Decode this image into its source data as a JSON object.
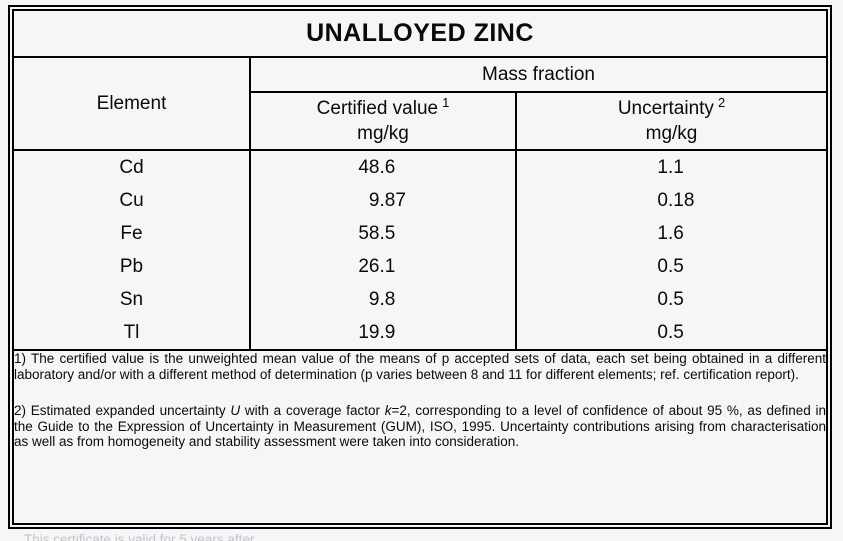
{
  "title": "UNALLOYED ZINC",
  "table": {
    "group_header": "Mass fraction",
    "element_header": "Element",
    "certified_header": {
      "label": "Certified value",
      "sup": "1",
      "unit": "mg/kg"
    },
    "uncertainty_header": {
      "label": "Uncertainty",
      "sup": "2",
      "unit": "mg/kg"
    },
    "rows": [
      {
        "element": "Cd",
        "certified": "48.6",
        "uncertainty": "1.1"
      },
      {
        "element": "Cu",
        "certified": "9.87",
        "uncertainty": "0.18"
      },
      {
        "element": "Fe",
        "certified": "58.5",
        "uncertainty": "1.6"
      },
      {
        "element": "Pb",
        "certified": "26.1",
        "uncertainty": "0.5"
      },
      {
        "element": "Sn",
        "certified": "9.8",
        "uncertainty": "0.5"
      },
      {
        "element": "Tl",
        "certified": "19.9",
        "uncertainty": "0.5"
      }
    ]
  },
  "footnotes": {
    "note1": "1) The certified value is the unweighted mean value of the means of p accepted sets of data, each set being obtained in a different laboratory and/or with a different method of determination (p varies between 8 and 11 for different elements; ref. certification report).",
    "note2_part1": "2) Estimated expanded uncertainty ",
    "note2_italic1": "U",
    "note2_part2": " with a coverage factor ",
    "note2_italic2": "k",
    "note2_part3": "=2, corresponding to a level of confidence of about 95 %, as defined in the Guide to the Expression of Uncertainty in Measurement (GUM), ISO, 1995. Uncertainty contributions arising from characterisation as well as from homogeneity and stability assessment were taken into consideration."
  },
  "footer_note": "This certificate is valid for 5 years after",
  "colors": {
    "background": "#f6f6f8",
    "border": "#000000",
    "text": "#0a0a0a",
    "footer_text": "#c3c3c9"
  }
}
